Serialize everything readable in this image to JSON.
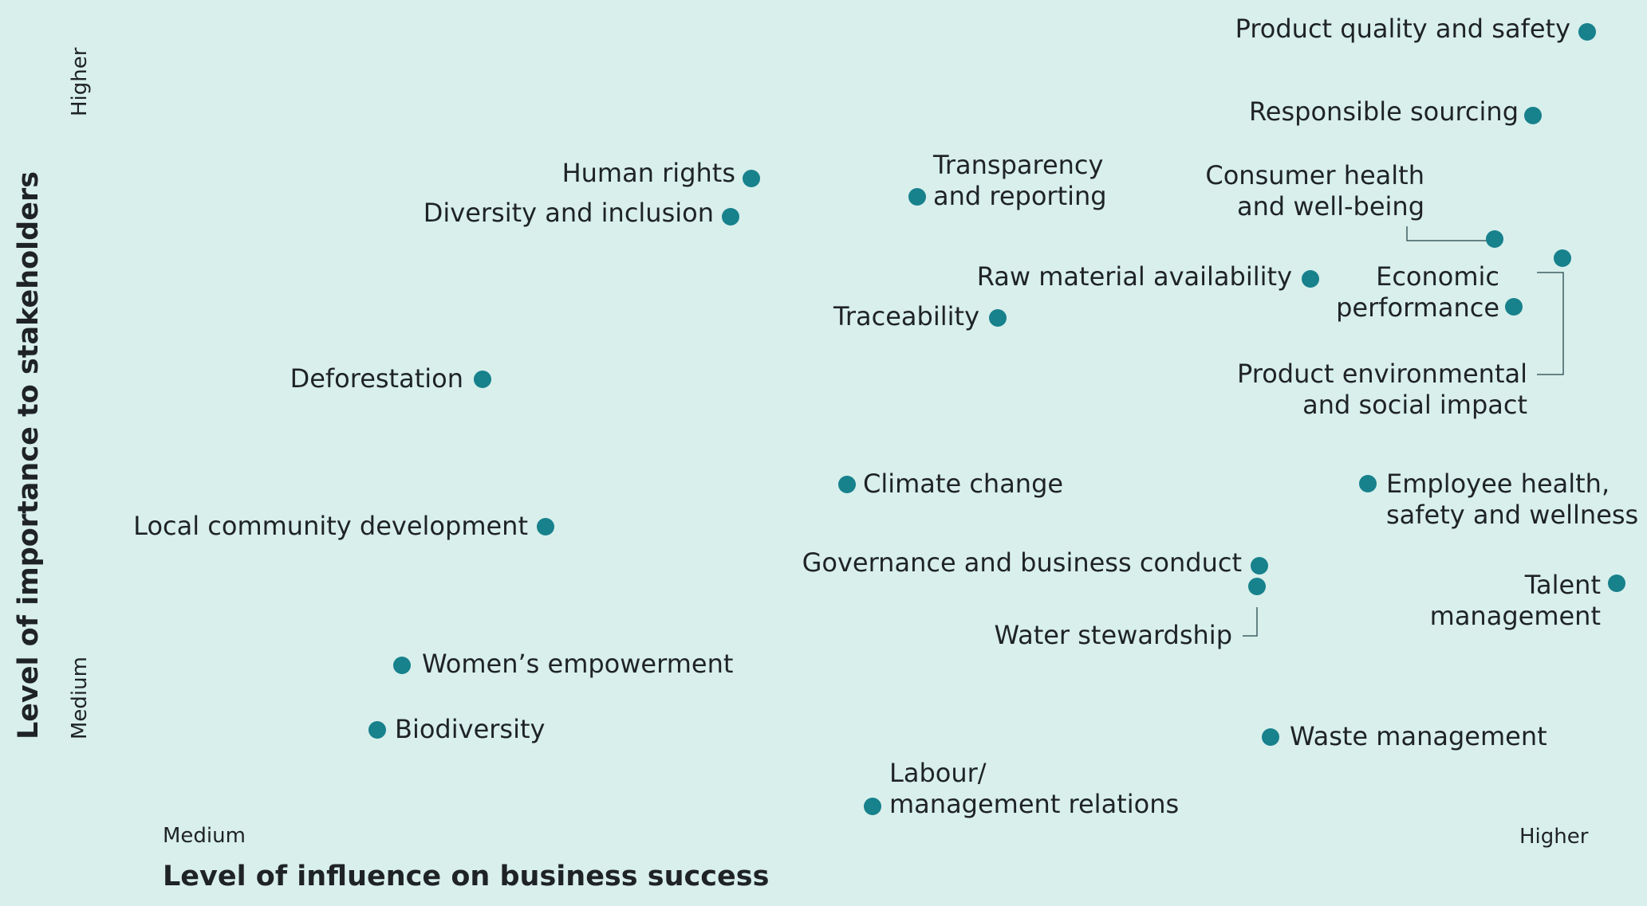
{
  "chart_data": {
    "type": "scatter",
    "title": "",
    "xlabel": "Level of influence on business success",
    "ylabel": "Level of importance to stakeholders",
    "x_ticks": [
      "Medium",
      "Higher"
    ],
    "y_ticks": [
      "Medium",
      "Higher"
    ],
    "xlim": [
      0,
      1
    ],
    "ylim": [
      0,
      1
    ],
    "grid": false,
    "legend": "none",
    "marker_color": "#17818c",
    "points": [
      {
        "label": "Product quality and safety",
        "x": 0.99,
        "y": 1.0
      },
      {
        "label": "Responsible sourcing",
        "x": 0.95,
        "y": 0.9
      },
      {
        "label": "Human rights",
        "x": 0.41,
        "y": 0.82
      },
      {
        "label": "Transparency and reporting",
        "x": 0.53,
        "y": 0.79
      },
      {
        "label": "Diversity and inclusion",
        "x": 0.4,
        "y": 0.77
      },
      {
        "label": "Consumer health and well-being",
        "x": 0.92,
        "y": 0.74
      },
      {
        "label": "Product environmental and social impact",
        "x": 0.97,
        "y": 0.72
      },
      {
        "label": "Raw material availability",
        "x": 0.8,
        "y": 0.69
      },
      {
        "label": "Economic performance",
        "x": 0.94,
        "y": 0.68
      },
      {
        "label": "Traceability",
        "x": 0.59,
        "y": 0.65
      },
      {
        "label": "Deforestation",
        "x": 0.23,
        "y": 0.58
      },
      {
        "label": "Climate change",
        "x": 0.5,
        "y": 0.45
      },
      {
        "label": "Employee health, safety and wellness",
        "x": 0.84,
        "y": 0.45
      },
      {
        "label": "Local community development",
        "x": 0.27,
        "y": 0.4
      },
      {
        "label": "Governance and business conduct",
        "x": 0.77,
        "y": 0.35
      },
      {
        "label": "Water stewardship",
        "x": 0.77,
        "y": 0.33
      },
      {
        "label": "Talent management",
        "x": 1.0,
        "y": 0.33
      },
      {
        "label": "Women’s empowerment",
        "x": 0.17,
        "y": 0.23
      },
      {
        "label": "Biodiversity",
        "x": 0.15,
        "y": 0.15
      },
      {
        "label": "Waste management",
        "x": 0.78,
        "y": 0.14
      },
      {
        "label": "Labour/ management relations",
        "x": 0.51,
        "y": 0.06
      }
    ]
  }
}
